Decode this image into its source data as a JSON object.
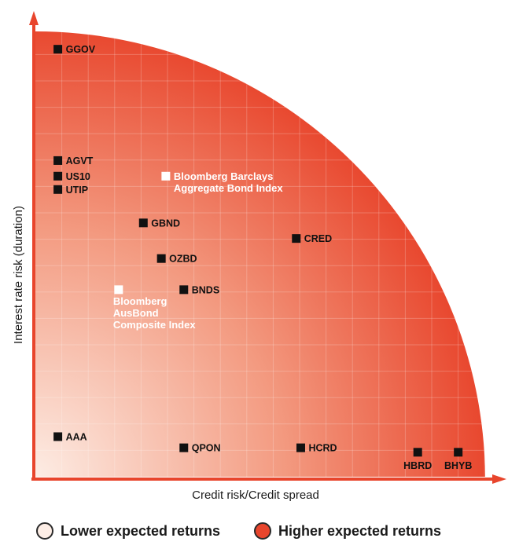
{
  "colors": {
    "low": "#fdeee6",
    "high": "#e8452c",
    "axis": "#e8452c",
    "marker_dark": "#111111",
    "marker_light": "#ffffff"
  },
  "chart_data": {
    "type": "scatter",
    "title": "",
    "xlabel": "Credit risk/Credit spread",
    "ylabel": "Interest rate risk (duration)",
    "xlim": [
      0,
      100
    ],
    "ylim": [
      0,
      100
    ],
    "grid": true,
    "points": [
      {
        "label": "GGOV",
        "x": 5,
        "y": 96,
        "style": "dark",
        "label_pos": "right"
      },
      {
        "label": "AGVT",
        "x": 5,
        "y": 71,
        "style": "dark",
        "label_pos": "right"
      },
      {
        "label": "US10",
        "x": 5,
        "y": 67.5,
        "style": "dark",
        "label_pos": "right"
      },
      {
        "label": "UTIP",
        "x": 5,
        "y": 64.5,
        "style": "dark",
        "label_pos": "right"
      },
      {
        "label": "Bloomberg Barclays\nAggregate Bond Index",
        "x": 29,
        "y": 67.5,
        "style": "light",
        "label_pos": "right"
      },
      {
        "label": "GBND",
        "x": 24,
        "y": 57,
        "style": "dark",
        "label_pos": "right"
      },
      {
        "label": "CRED",
        "x": 58,
        "y": 53.5,
        "style": "dark",
        "label_pos": "right"
      },
      {
        "label": "OZBD",
        "x": 28,
        "y": 49,
        "style": "dark",
        "label_pos": "right"
      },
      {
        "label": "Bloomberg\nAusBond\nComposite Index",
        "x": 18.5,
        "y": 42,
        "style": "light",
        "label_pos": "below"
      },
      {
        "label": "BNDS",
        "x": 33,
        "y": 42,
        "style": "dark",
        "label_pos": "right"
      },
      {
        "label": "AAA",
        "x": 5,
        "y": 9,
        "style": "dark",
        "label_pos": "right"
      },
      {
        "label": "QPON",
        "x": 33,
        "y": 6.5,
        "style": "dark",
        "label_pos": "right"
      },
      {
        "label": "HCRD",
        "x": 59,
        "y": 6.5,
        "style": "dark",
        "label_pos": "right"
      },
      {
        "label": "HBRD",
        "x": 85,
        "y": 5.5,
        "style": "dark",
        "label_pos": "below"
      },
      {
        "label": "BHYB",
        "x": 94,
        "y": 5.5,
        "style": "dark",
        "label_pos": "below"
      }
    ]
  },
  "legend": {
    "low_label": "Lower expected returns",
    "high_label": "Higher expected returns"
  }
}
